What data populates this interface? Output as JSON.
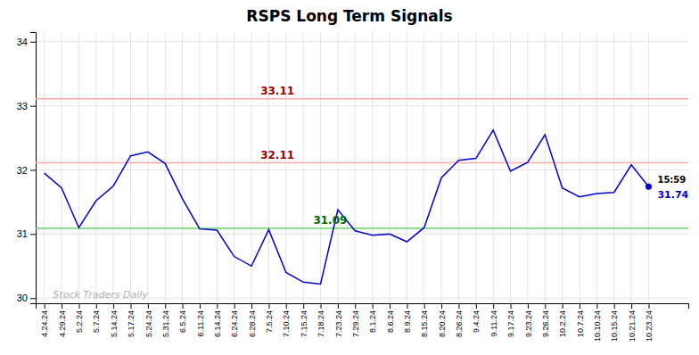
{
  "chart_data": {
    "type": "line",
    "title": "RSPS Long Term Signals",
    "categories": [
      "4.24.24",
      "4.29.24",
      "5.2.24",
      "5.7.24",
      "5.14.24",
      "5.17.24",
      "5.24.24",
      "5.31.24",
      "6.5.24",
      "6.11.24",
      "6.14.24",
      "6.24.24",
      "6.28.24",
      "7.5.24",
      "7.10.24",
      "7.15.24",
      "7.18.24",
      "7.23.24",
      "7.29.24",
      "8.1.24",
      "8.6.24",
      "8.9.24",
      "8.15.24",
      "8.20.24",
      "8.26.24",
      "9.4.24",
      "9.11.24",
      "9.17.24",
      "9.23.24",
      "9.26.24",
      "10.2.24",
      "10.7.24",
      "10.10.24",
      "10.15.24",
      "10.21.24",
      "10.23.24"
    ],
    "values": [
      31.95,
      31.72,
      31.1,
      31.52,
      31.75,
      32.22,
      32.28,
      32.1,
      31.55,
      31.08,
      31.06,
      30.65,
      30.5,
      31.07,
      30.4,
      30.25,
      30.22,
      31.38,
      31.05,
      30.98,
      31.0,
      30.88,
      31.1,
      31.88,
      32.15,
      32.18,
      32.62,
      31.98,
      32.12,
      32.55,
      31.72,
      31.58,
      31.63,
      31.65,
      32.08,
      31.74
    ],
    "color": "#0000cc",
    "ylim": [
      29.92,
      34.15
    ],
    "yticks": [
      30,
      31,
      32,
      33,
      34
    ],
    "grid": true,
    "reference_lines": [
      {
        "value": 33.11,
        "label": "33.11",
        "color": "#ffaaaa",
        "label_color": "#990000"
      },
      {
        "value": 32.11,
        "label": "32.11",
        "color": "#ffaaaa",
        "label_color": "#990000"
      },
      {
        "value": 31.09,
        "label": "31.09",
        "color": "#66dd66",
        "label_color": "#006600"
      }
    ],
    "endpoint_labels": [
      "15:59",
      "31.74"
    ],
    "watermark": "Stock Traders Daily"
  }
}
